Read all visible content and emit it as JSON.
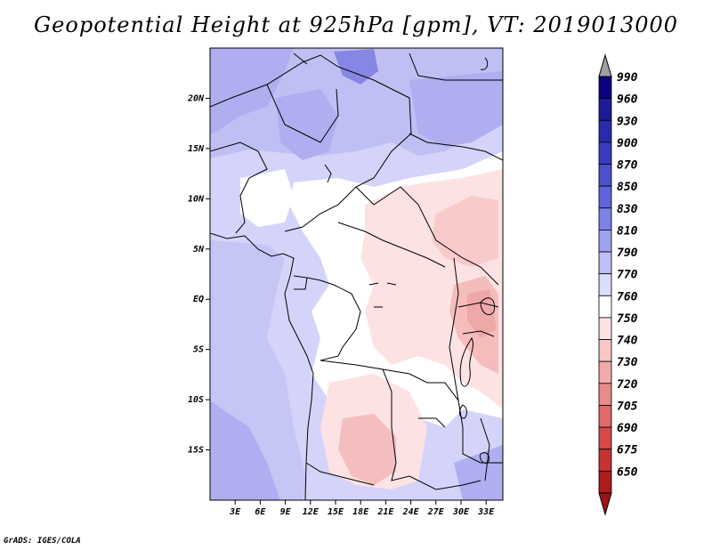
{
  "title": "Geopotential Height at 925hPa [gpm], VT: 2019013000",
  "credit": "GrADS: IGES/COLA",
  "map": {
    "lon_range": [
      0,
      35
    ],
    "lat_range": [
      -20,
      25
    ],
    "y_ticks": [
      {
        "lat": 20,
        "label": "20N"
      },
      {
        "lat": 15,
        "label": "15N"
      },
      {
        "lat": 10,
        "label": "10N"
      },
      {
        "lat": 5,
        "label": "5N"
      },
      {
        "lat": 0,
        "label": "EQ"
      },
      {
        "lat": -5,
        "label": "5S"
      },
      {
        "lat": -10,
        "label": "10S"
      },
      {
        "lat": -15,
        "label": "15S"
      }
    ],
    "x_ticks": [
      {
        "lon": 3,
        "label": "3E"
      },
      {
        "lon": 6,
        "label": "6E"
      },
      {
        "lon": 9,
        "label": "9E"
      },
      {
        "lon": 12,
        "label": "12E"
      },
      {
        "lon": 15,
        "label": "15E"
      },
      {
        "lon": 18,
        "label": "18E"
      },
      {
        "lon": 21,
        "label": "21E"
      },
      {
        "lon": 24,
        "label": "24E"
      },
      {
        "lon": 27,
        "label": "27E"
      },
      {
        "lon": 30,
        "label": "30E"
      },
      {
        "lon": 33,
        "label": "33E"
      }
    ]
  },
  "colorbar": {
    "levels": [
      {
        "label": "990",
        "color": "#0c0082"
      },
      {
        "label": "960",
        "color": "#1e1a9a"
      },
      {
        "label": "930",
        "color": "#2a2aae"
      },
      {
        "label": "900",
        "color": "#3a3cc0"
      },
      {
        "label": "870",
        "color": "#4b50cc"
      },
      {
        "label": "850",
        "color": "#6064dc"
      },
      {
        "label": "830",
        "color": "#7c82e6"
      },
      {
        "label": "810",
        "color": "#9fa2ee"
      },
      {
        "label": "790",
        "color": "#bebff6"
      },
      {
        "label": "770",
        "color": "#dcdcfc"
      },
      {
        "label": "760",
        "color": "#ffffff"
      },
      {
        "label": "750",
        "color": "#fce2e2"
      },
      {
        "label": "740",
        "color": "#f8c8c8"
      },
      {
        "label": "730",
        "color": "#f2aaaa"
      },
      {
        "label": "720",
        "color": "#ea8a8a"
      },
      {
        "label": "705",
        "color": "#e06a6a"
      },
      {
        "label": "690",
        "color": "#d44a4a"
      },
      {
        "label": "675",
        "color": "#c43232"
      },
      {
        "label": "650",
        "color": "#ac1c1c"
      }
    ],
    "top_color": "#a0a0a0",
    "bottom_color": "#9c1414"
  }
}
